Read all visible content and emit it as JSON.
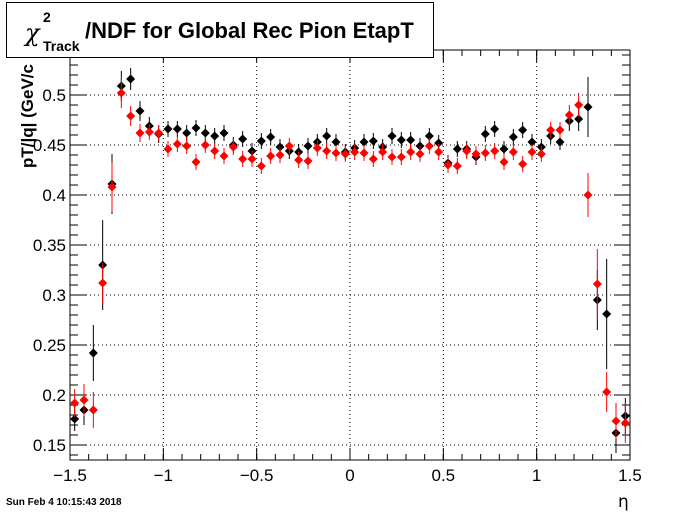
{
  "title": {
    "chi": "χ",
    "superscript": "2",
    "subscript": "Track",
    "rest": "/NDF for Global Rec Pion EtapT"
  },
  "timestamp": "Sun Feb  4 10:15:43 2018",
  "chart_data": {
    "type": "scatter",
    "xlabel": "η",
    "ylabel": "pT/|q| (GeV/c",
    "xlim": [
      -1.5,
      1.5
    ],
    "ylim": [
      0.135,
      0.545
    ],
    "xticks": [
      -1.5,
      -1,
      -0.5,
      0,
      0.5,
      1,
      1.5
    ],
    "xtick_labels": [
      "−1.5",
      "−1",
      "−0.5",
      "0",
      "0.5",
      "1",
      "1.5"
    ],
    "yticks": [
      0.15,
      0.2,
      0.25,
      0.3,
      0.35,
      0.4,
      0.45,
      0.5
    ],
    "ytick_labels": [
      "0.15",
      "0.2",
      "0.25",
      "0.3",
      "0.35",
      "0.4",
      "0.45",
      "0.5"
    ],
    "grid": true,
    "series": [
      {
        "color": "#000000",
        "x": [
          -1.475,
          -1.425,
          -1.375,
          -1.325,
          -1.275,
          -1.225,
          -1.175,
          -1.125,
          -1.075,
          -1.025,
          -0.975,
          -0.925,
          -0.875,
          -0.825,
          -0.775,
          -0.725,
          -0.675,
          -0.625,
          -0.575,
          -0.525,
          -0.475,
          -0.425,
          -0.375,
          -0.325,
          -0.275,
          -0.225,
          -0.175,
          -0.125,
          -0.075,
          -0.025,
          0.025,
          0.075,
          0.125,
          0.175,
          0.225,
          0.275,
          0.325,
          0.375,
          0.425,
          0.475,
          0.525,
          0.575,
          0.625,
          0.675,
          0.725,
          0.775,
          0.825,
          0.875,
          0.925,
          0.975,
          1.025,
          1.075,
          1.125,
          1.175,
          1.225,
          1.275,
          1.325,
          1.375,
          1.425,
          1.475
        ],
        "y": [
          0.176,
          0.185,
          0.242,
          0.33,
          0.411,
          0.509,
          0.516,
          0.484,
          0.469,
          0.461,
          0.466,
          0.466,
          0.462,
          0.467,
          0.462,
          0.459,
          0.462,
          0.45,
          0.456,
          0.444,
          0.454,
          0.458,
          0.448,
          0.444,
          0.443,
          0.449,
          0.453,
          0.459,
          0.453,
          0.443,
          0.447,
          0.453,
          0.454,
          0.448,
          0.459,
          0.455,
          0.455,
          0.449,
          0.459,
          0.452,
          0.432,
          0.446,
          0.446,
          0.438,
          0.461,
          0.466,
          0.446,
          0.458,
          0.465,
          0.453,
          0.448,
          0.459,
          0.453,
          0.474,
          0.476,
          0.488,
          0.295,
          0.281,
          0.162,
          0.179
        ],
        "err": [
          0.012,
          0.015,
          0.028,
          0.045,
          0.03,
          0.015,
          0.011,
          0.01,
          0.009,
          0.009,
          0.008,
          0.008,
          0.008,
          0.008,
          0.008,
          0.008,
          0.008,
          0.008,
          0.008,
          0.008,
          0.008,
          0.008,
          0.008,
          0.008,
          0.008,
          0.008,
          0.008,
          0.008,
          0.008,
          0.008,
          0.008,
          0.008,
          0.008,
          0.008,
          0.008,
          0.008,
          0.008,
          0.008,
          0.008,
          0.008,
          0.008,
          0.008,
          0.008,
          0.008,
          0.008,
          0.008,
          0.008,
          0.008,
          0.008,
          0.008,
          0.008,
          0.008,
          0.008,
          0.01,
          0.012,
          0.03,
          0.03,
          0.055,
          0.02,
          0.018
        ]
      },
      {
        "color": "#ff0000",
        "x": [
          -1.475,
          -1.425,
          -1.375,
          -1.325,
          -1.275,
          -1.225,
          -1.175,
          -1.125,
          -1.075,
          -1.025,
          -0.975,
          -0.925,
          -0.875,
          -0.825,
          -0.775,
          -0.725,
          -0.675,
          -0.625,
          -0.575,
          -0.525,
          -0.475,
          -0.425,
          -0.375,
          -0.325,
          -0.275,
          -0.225,
          -0.175,
          -0.125,
          -0.075,
          -0.025,
          0.025,
          0.075,
          0.125,
          0.175,
          0.225,
          0.275,
          0.325,
          0.375,
          0.425,
          0.475,
          0.525,
          0.575,
          0.625,
          0.675,
          0.725,
          0.775,
          0.825,
          0.875,
          0.925,
          0.975,
          1.025,
          1.075,
          1.125,
          1.175,
          1.225,
          1.275,
          1.325,
          1.375,
          1.425,
          1.475
        ],
        "y": [
          0.192,
          0.195,
          0.185,
          0.312,
          0.408,
          0.502,
          0.479,
          0.462,
          0.463,
          0.462,
          0.446,
          0.451,
          0.449,
          0.433,
          0.45,
          0.444,
          0.439,
          0.448,
          0.436,
          0.436,
          0.429,
          0.439,
          0.44,
          0.449,
          0.435,
          0.434,
          0.447,
          0.444,
          0.442,
          0.441,
          0.443,
          0.442,
          0.436,
          0.443,
          0.438,
          0.438,
          0.443,
          0.441,
          0.449,
          0.443,
          0.43,
          0.429,
          0.444,
          0.441,
          0.442,
          0.444,
          0.433,
          0.443,
          0.431,
          0.443,
          0.441,
          0.465,
          0.465,
          0.48,
          0.49,
          0.4,
          0.311,
          0.203,
          0.174,
          0.172
        ],
        "err": [
          0.014,
          0.016,
          0.018,
          0.02,
          0.025,
          0.015,
          0.01,
          0.009,
          0.008,
          0.008,
          0.008,
          0.008,
          0.008,
          0.008,
          0.008,
          0.008,
          0.008,
          0.008,
          0.008,
          0.008,
          0.008,
          0.008,
          0.008,
          0.008,
          0.008,
          0.008,
          0.008,
          0.008,
          0.008,
          0.008,
          0.008,
          0.008,
          0.008,
          0.008,
          0.008,
          0.008,
          0.008,
          0.008,
          0.008,
          0.008,
          0.008,
          0.008,
          0.008,
          0.008,
          0.008,
          0.008,
          0.008,
          0.008,
          0.008,
          0.008,
          0.008,
          0.008,
          0.008,
          0.01,
          0.012,
          0.022,
          0.035,
          0.02,
          0.018,
          0.02
        ]
      }
    ]
  }
}
